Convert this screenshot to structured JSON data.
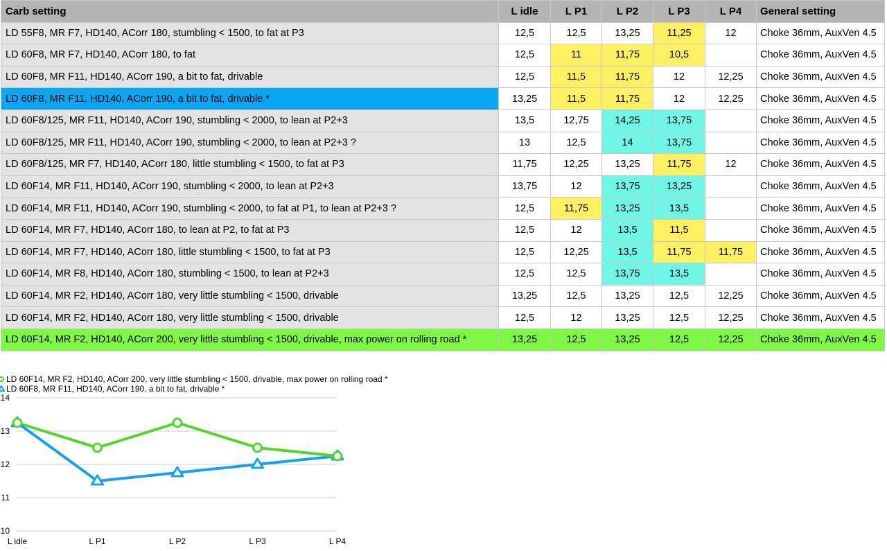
{
  "table": {
    "headers": [
      "Carb setting",
      "L idle",
      "L P1",
      "L P2",
      "L P3",
      "L P4",
      "General setting"
    ],
    "rows": [
      {
        "setting": "LD 55F8, MR F7, HD140, ACorr 180, stumbling < 1500, to fat at P3",
        "idle": "12,5",
        "p1": "12,5",
        "p2": "13,25",
        "p3": "11,25",
        "p4": "12",
        "general": "Choke 36mm, AuxVen 4.5",
        "hl": [
          "",
          "",
          "",
          "y",
          ""
        ],
        "row_style": ""
      },
      {
        "setting": "LD 60F8, MR F7, HD140, ACorr 180, to fat",
        "idle": "12,5",
        "p1": "11",
        "p2": "11,75",
        "p3": "10,5",
        "p4": "",
        "general": "Choke 36mm, AuxVen 4.5",
        "hl": [
          "",
          "y",
          "y",
          "y",
          ""
        ],
        "row_style": ""
      },
      {
        "setting": "LD 60F8, MR F11, HD140, ACorr 190, a bit to fat, drivable",
        "idle": "12,5",
        "p1": "11,5",
        "p2": "11,75",
        "p3": "12",
        "p4": "12,25",
        "general": "Choke 36mm, AuxVen 4.5",
        "hl": [
          "",
          "y",
          "y",
          "",
          ""
        ],
        "row_style": ""
      },
      {
        "setting": "LD 60F8, MR F11, HD140, ACorr 190, a bit to fat, drivable *",
        "idle": "13,25",
        "p1": "11,5",
        "p2": "11,75",
        "p3": "12",
        "p4": "12,25",
        "general": "Choke 36mm, AuxVen 4.5",
        "hl": [
          "",
          "y",
          "y",
          "",
          ""
        ],
        "row_style": "blue"
      },
      {
        "setting": "LD 60F8/125, MR F11, HD140, ACorr 190, stumbling < 2000, to lean at P2+3",
        "idle": "13,5",
        "p1": "12,75",
        "p2": "14,25",
        "p3": "13,75",
        "p4": "",
        "general": "Choke 36mm, AuxVen 4.5",
        "hl": [
          "",
          "",
          "c",
          "c",
          ""
        ],
        "row_style": ""
      },
      {
        "setting": "LD 60F8/125, MR F11, HD140, ACorr 190, stumbling < 2000, to lean at P2+3 ?",
        "idle": "13",
        "p1": "12,5",
        "p2": "14",
        "p3": "13,75",
        "p4": "",
        "general": "Choke 36mm, AuxVen 4.5",
        "hl": [
          "",
          "",
          "c",
          "c",
          ""
        ],
        "row_style": ""
      },
      {
        "setting": "LD 60F8/125, MR F7, HD140, ACorr 180, little stumbling < 1500, to fat at P3",
        "idle": "11,75",
        "p1": "12,25",
        "p2": "13,25",
        "p3": "11,75",
        "p4": "12",
        "general": "Choke 36mm, AuxVen 4.5",
        "hl": [
          "",
          "",
          "",
          "y",
          ""
        ],
        "row_style": ""
      },
      {
        "setting": "LD 60F14, MR F11, HD140, ACorr 190, stumbling < 2000, to lean at P2+3",
        "idle": "13,75",
        "p1": "12",
        "p2": "13,75",
        "p3": "13,25",
        "p4": "",
        "general": "Choke 36mm, AuxVen 4.5",
        "hl": [
          "",
          "",
          "c",
          "c",
          ""
        ],
        "row_style": ""
      },
      {
        "setting": "LD 60F14, MR F11, HD140, ACorr 190, stumbling < 2000, to fat at P1, to lean at P2+3 ?",
        "idle": "12,5",
        "p1": "11,75",
        "p2": "13,25",
        "p3": "13,5",
        "p4": "",
        "general": "Choke 36mm, AuxVen 4.5",
        "hl": [
          "",
          "y",
          "c",
          "c",
          ""
        ],
        "row_style": ""
      },
      {
        "setting": "LD 60F14, MR F7, HD140, ACorr 180, to lean at P2, to fat at P3",
        "idle": "12,5",
        "p1": "12",
        "p2": "13,5",
        "p3": "11,5",
        "p4": "",
        "general": "Choke 36mm, AuxVen 4.5",
        "hl": [
          "",
          "",
          "c",
          "y",
          ""
        ],
        "row_style": ""
      },
      {
        "setting": "LD 60F14, MR F7, HD140, ACorr 180, little stumbling < 1500, to fat at P3",
        "idle": "12,5",
        "p1": "12,25",
        "p2": "13,5",
        "p3": "11,75",
        "p4": "11,75",
        "general": "Choke 36mm, AuxVen 4.5",
        "hl": [
          "",
          "",
          "c",
          "y",
          "y"
        ],
        "row_style": ""
      },
      {
        "setting": "LD 60F14, MR F8, HD140, ACorr 180, stumbling < 1500, to lean at P2+3",
        "idle": "12,5",
        "p1": "12,5",
        "p2": "13,75",
        "p3": "13,5",
        "p4": "",
        "general": "Choke 36mm, AuxVen 4.5",
        "hl": [
          "",
          "",
          "c",
          "c",
          ""
        ],
        "row_style": ""
      },
      {
        "setting": "LD 60F14, MR F2, HD140, ACorr 180, very little stumbling < 1500, drivable",
        "idle": "13,25",
        "p1": "12,5",
        "p2": "13,25",
        "p3": "12,5",
        "p4": "12,25",
        "general": "Choke 36mm, AuxVen 4.5",
        "hl": [
          "",
          "",
          "",
          "",
          ""
        ],
        "row_style": ""
      },
      {
        "setting": "LD 60F14, MR F2, HD140, ACorr 180, very little stumbling < 1500, drivable",
        "idle": "12,5",
        "p1": "12",
        "p2": "13,25",
        "p3": "12,5",
        "p4": "12,25",
        "general": "Choke 36mm, AuxVen 4.5",
        "hl": [
          "",
          "",
          "",
          "",
          ""
        ],
        "row_style": ""
      },
      {
        "setting": "LD 60F14, MR F2, HD140, ACorr 200, very little stumbling < 1500, drivable, max power on rolling road *",
        "idle": "13,25",
        "p1": "12,5",
        "p2": "13,25",
        "p3": "12,5",
        "p4": "12,25",
        "general": "Choke 36mm, AuxVen 4.5",
        "hl": [
          "",
          "",
          "",
          "",
          ""
        ],
        "row_style": "green"
      }
    ]
  },
  "chart_data": {
    "type": "line",
    "categories": [
      "L idle",
      "L P1",
      "L P2",
      "L P3",
      "L P4"
    ],
    "series": [
      {
        "name": "LD 60F14, MR F2, HD140, ACorr 200, very little stumbling < 1500, drivable, max power on rolling road *",
        "values": [
          13.25,
          12.5,
          13.25,
          12.5,
          12.25
        ],
        "color": "#56d42c",
        "marker": "circle"
      },
      {
        "name": "LD 60F8, MR F11, HD140, ACorr 190, a bit to fat, drivable *",
        "values": [
          13.25,
          11.5,
          11.75,
          12,
          12.25
        ],
        "color": "#18a0ee",
        "marker": "triangle"
      }
    ],
    "ylim": [
      10,
      14
    ],
    "yticks": [
      "10",
      "11",
      "12",
      "13",
      "14"
    ],
    "grid": true,
    "legend": "top-left"
  }
}
